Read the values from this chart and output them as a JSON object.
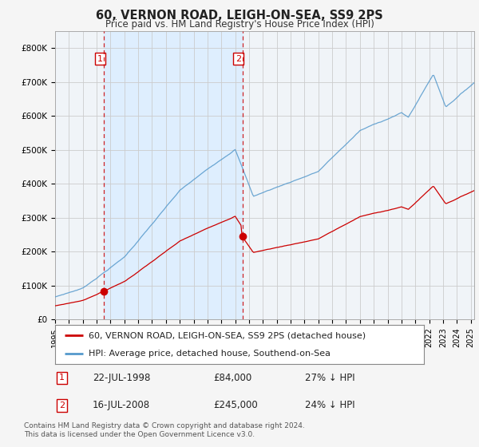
{
  "title": "60, VERNON ROAD, LEIGH-ON-SEA, SS9 2PS",
  "subtitle": "Price paid vs. HM Land Registry's House Price Index (HPI)",
  "legend_line1": "60, VERNON ROAD, LEIGH-ON-SEA, SS9 2PS (detached house)",
  "legend_line2": "HPI: Average price, detached house, Southend-on-Sea",
  "footnote": "Contains HM Land Registry data © Crown copyright and database right 2024.\nThis data is licensed under the Open Government Licence v3.0.",
  "sale1_date": "22-JUL-1998",
  "sale1_price": 84000,
  "sale1_hpi": "27% ↓ HPI",
  "sale2_date": "16-JUL-2008",
  "sale2_price": 245000,
  "sale2_hpi": "24% ↓ HPI",
  "red_color": "#cc0000",
  "blue_color": "#5599cc",
  "fill_color": "#ddeeff",
  "ylim_min": 0,
  "ylim_max": 850000,
  "xlim_min": 1995.0,
  "xlim_max": 2025.25,
  "background_color": "#f0f4f8",
  "grid_color": "#cccccc",
  "sale1_year": 1998.54,
  "sale2_year": 2008.54
}
